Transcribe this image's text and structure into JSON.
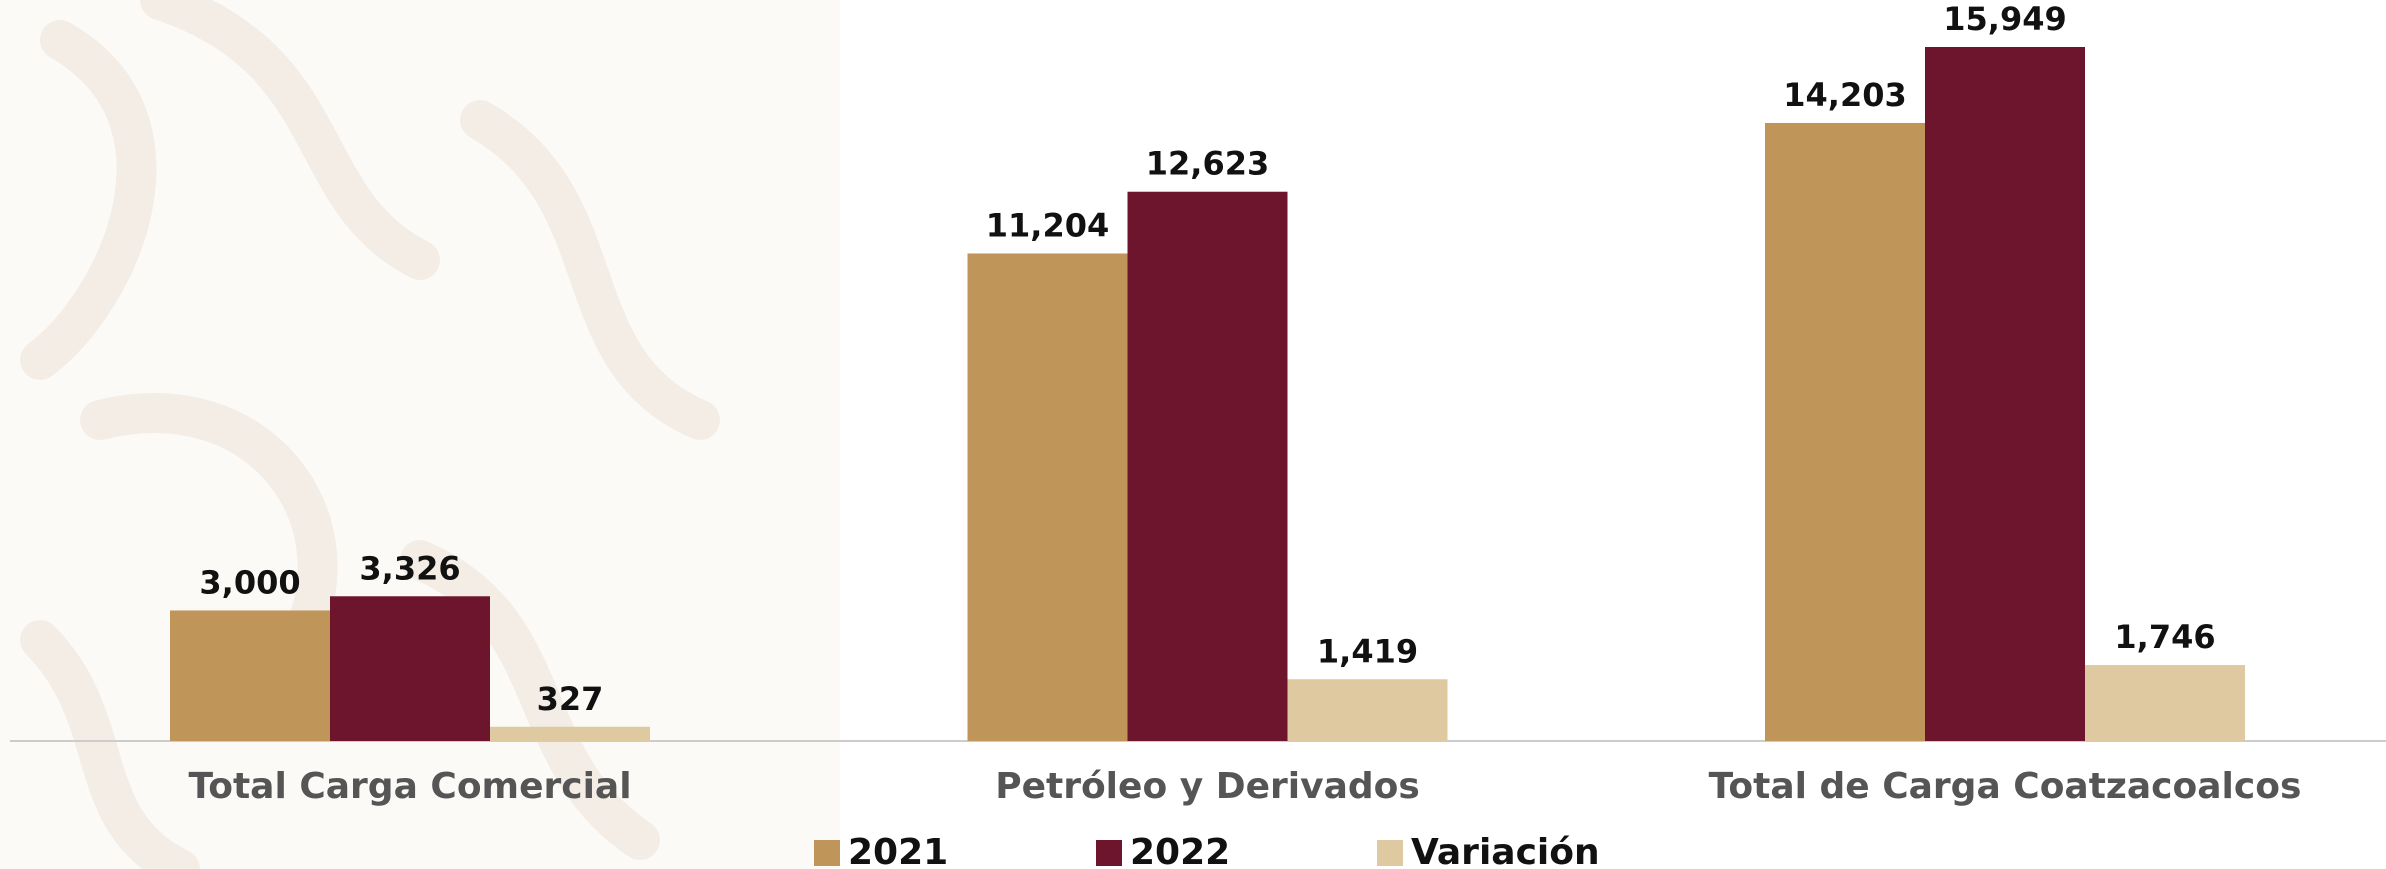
{
  "chart_data": {
    "type": "bar",
    "categories": [
      "Total Carga Comercial",
      "Petróleo y Derivados",
      "Total de Carga  Coatzacoalcos"
    ],
    "series": [
      {
        "name": "2021",
        "color": "#bf955a",
        "values": [
          3000,
          11204,
          14203
        ],
        "value_labels": [
          "3,000",
          "11,204",
          "14,203"
        ]
      },
      {
        "name": "2022",
        "color": "#6c152c",
        "values": [
          3326,
          12623,
          15949
        ],
        "value_labels": [
          "3,326",
          "12,623",
          "15,949"
        ]
      },
      {
        "name": "Variación",
        "color": "#dfc9a0",
        "values": [
          327,
          1419,
          1746
        ],
        "value_labels": [
          "327",
          "1,419",
          "1,746"
        ]
      }
    ],
    "legend": "bottom"
  }
}
